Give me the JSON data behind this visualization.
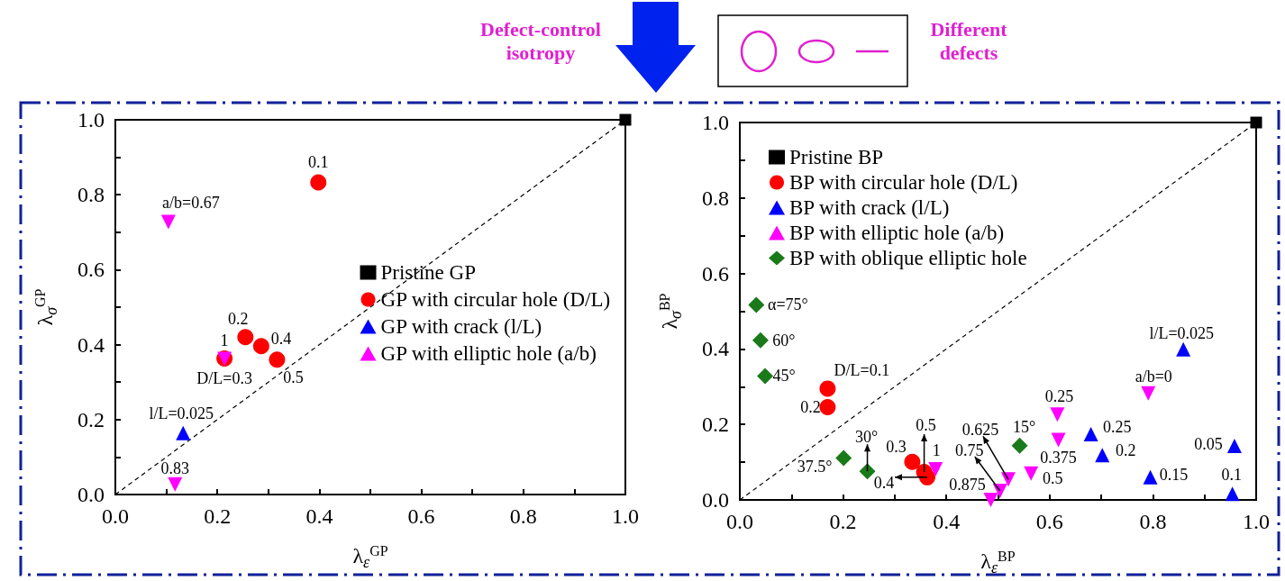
{
  "chart_data": [
    {
      "type": "scatter",
      "xlabel": "λ$_{ε}$$^{GP}$",
      "ylabel": "λ$_{σ}$$^{GP}$",
      "xlim": [
        0,
        1
      ],
      "ylim": [
        0,
        1
      ],
      "xticks": [
        {
          "value": 0,
          "label": "0.0"
        },
        {
          "value": 0.1,
          "label": null
        },
        0.2,
        {
          "value": 0.3,
          "label": null
        },
        0.4,
        {
          "value": 0.5,
          "label": null
        },
        0.6,
        {
          "value": 0.7,
          "label": null
        },
        0.8,
        {
          "value": 0.9,
          "label": null
        },
        {
          "value": 1,
          "label": "1.0"
        }
      ],
      "yticks": [
        {
          "value": 0,
          "label": "0.0"
        },
        {
          "value": 0.1,
          "label": null
        },
        0.2,
        {
          "value": 0.3,
          "label": null
        },
        0.4,
        {
          "value": 0.5,
          "label": null
        },
        0.6,
        {
          "value": 0.7,
          "label": null
        },
        0.8,
        {
          "value": 0.9,
          "label": null
        },
        {
          "value": 1,
          "label": "1.0"
        }
      ],
      "legend": "bottom right",
      "grid": false,
      "series": [
        {
          "type": "line",
          "x": [
            0,
            1
          ],
          "values": [
            0,
            1
          ],
          "color": "#000000",
          "line_style": "dashed",
          "marker": "none"
        },
        {
          "name": "Pristine GP",
          "color": "#000000",
          "marker": "square",
          "x": [
            1
          ],
          "values": [
            1
          ]
        },
        {
          "name": "GP with circular hole (D/L)",
          "color": "#ff0000",
          "marker": "circle",
          "x": [
            0.398,
            0.255,
            0.214,
            0.286,
            0.317
          ],
          "values": [
            0.833,
            0.42,
            0.363,
            0.396,
            0.36
          ]
        },
        {
          "name": "GP with crack (l/L)",
          "color": "#0000ff",
          "marker": "triangle",
          "x": [
            0.133
          ],
          "values": [
            0.164
          ]
        },
        {
          "name": "GP with elliptic hole (a/b)",
          "color": "#ff00ff",
          "marker": "triangle-down",
          "x": [
            0.104,
            0.214,
            0.117
          ],
          "values": [
            0.727,
            0.362,
            0.027
          ]
        }
      ],
      "annotations": [
        "Defect-control isotropy",
        "Different defects",
        {
          "text": "0.1",
          "x": 0.398,
          "y": 0.833
        },
        {
          "text": "0.2",
          "x": 0.255,
          "y": 0.42
        },
        {
          "text": "D/L=0.3",
          "x": 0.214,
          "y": 0.363
        },
        {
          "text": "0.4",
          "x": 0.286,
          "y": 0.396
        },
        {
          "text": "0.5",
          "x": 0.317,
          "y": 0.36
        },
        {
          "text": "l/L=0.025",
          "x": 0.133,
          "y": 0.164
        },
        {
          "text": "a/b=0.67",
          "x": 0.104,
          "y": 0.727
        },
        {
          "text": "1",
          "x": 0.214,
          "y": 0.362
        },
        {
          "text": "0.83",
          "x": 0.117,
          "y": 0.027
        }
      ]
    },
    {
      "type": "scatter",
      "xlabel": "λ$_{ε}$$^{BP}$",
      "ylabel": "λ$_{σ}$$^{BP}$",
      "xlim": [
        0,
        1
      ],
      "ylim": [
        0,
        1
      ],
      "xticks": [
        {
          "value": 0,
          "label": "0.0"
        },
        {
          "value": 0.1,
          "label": null
        },
        0.2,
        {
          "value": 0.3,
          "label": null
        },
        0.4,
        {
          "value": 0.5,
          "label": null
        },
        0.6,
        {
          "value": 0.7,
          "label": null
        },
        0.8,
        {
          "value": 0.9,
          "label": null
        },
        {
          "value": 1,
          "label": "1.0"
        }
      ],
      "yticks": [
        {
          "value": 0,
          "label": "0.0"
        },
        {
          "value": 0.1,
          "label": null
        },
        0.2,
        {
          "value": 0.3,
          "label": null
        },
        0.4,
        {
          "value": 0.5,
          "label": null
        },
        0.6,
        {
          "value": 0.7,
          "label": null
        },
        0.8,
        {
          "value": 0.9,
          "label": null
        },
        {
          "value": 1,
          "label": "1.0"
        }
      ],
      "legend": "top left",
      "grid": false,
      "series": [
        {
          "type": "line",
          "x": [
            0,
            1
          ],
          "values": [
            0,
            1
          ],
          "color": "#000000",
          "line_style": "dashed",
          "marker": "none"
        },
        {
          "name": "Pristine BP",
          "color": "#000000",
          "marker": "square",
          "x": [
            1
          ],
          "values": [
            1
          ]
        },
        {
          "name": "BP with circular hole (D/L)",
          "color": "#ff0000",
          "marker": "circle",
          "x": [
            0.17,
            0.17,
            0.334,
            0.363,
            0.357
          ],
          "values": [
            0.295,
            0.246,
            0.101,
            0.06,
            0.074
          ]
        },
        {
          "name": "BP with crack (l/L)",
          "color": "#0000ff",
          "marker": "triangle",
          "x": [
            0.859,
            0.68,
            0.702,
            0.795,
            0.958,
            0.954
          ],
          "values": [
            0.399,
            0.174,
            0.119,
            0.06,
            0.143,
            0.016
          ]
        },
        {
          "name": "BP with elliptic hole (a/b)",
          "color": "#ff00ff",
          "marker": "triangle-down",
          "x": [
            0.791,
            0.615,
            0.617,
            0.564,
            0.379,
            0.52,
            0.504,
            0.486
          ],
          "values": [
            0.282,
            0.226,
            0.159,
            0.07,
            0.081,
            0.054,
            0.024,
            0.0
          ]
        },
        {
          "name": "BP with oblique elliptic hole",
          "color": "#1a7a1a",
          "marker": "diamond",
          "x": [
            0.032,
            0.04,
            0.049,
            0.201,
            0.247,
            0.542
          ],
          "values": [
            0.517,
            0.423,
            0.328,
            0.111,
            0.076,
            0.144
          ]
        }
      ],
      "annotations": [
        {
          "text": "D/L=0.1",
          "x": 0.17,
          "y": 0.295
        },
        {
          "text": "0.2",
          "x": 0.17,
          "y": 0.246
        },
        {
          "text": "0.3",
          "x": 0.334,
          "y": 0.101
        },
        {
          "text": "0.5",
          "x": 0.357,
          "y": 0.074
        },
        {
          "text": "0.4",
          "x": 0.363,
          "y": 0.06
        },
        {
          "text": "1",
          "x": 0.379,
          "y": 0.081
        },
        {
          "text": "0.625",
          "x": 0.52,
          "y": 0.054
        },
        {
          "text": "0.75",
          "x": 0.504,
          "y": 0.024
        },
        {
          "text": "0.875",
          "x": 0.486,
          "y": 0.0
        },
        {
          "text": "0.5",
          "x": 0.564,
          "y": 0.07
        },
        {
          "text": "0.375",
          "x": 0.617,
          "y": 0.159
        },
        {
          "text": "0.25",
          "x": 0.615,
          "y": 0.226
        },
        {
          "text": "a/b=0",
          "x": 0.791,
          "y": 0.282
        },
        {
          "text": "l/L=0.025",
          "x": 0.859,
          "y": 0.399
        },
        {
          "text": "0.25",
          "x": 0.68,
          "y": 0.174
        },
        {
          "text": "0.2",
          "x": 0.702,
          "y": 0.119
        },
        {
          "text": "0.15",
          "x": 0.795,
          "y": 0.06
        },
        {
          "text": "0.05",
          "x": 0.958,
          "y": 0.143
        },
        {
          "text": "0.1",
          "x": 0.954,
          "y": 0.016
        },
        {
          "text": "α=75°",
          "x": 0.032,
          "y": 0.517
        },
        {
          "text": "60°",
          "x": 0.04,
          "y": 0.423
        },
        {
          "text": "45°",
          "x": 0.049,
          "y": 0.328
        },
        {
          "text": "37.5°",
          "x": 0.201,
          "y": 0.111
        },
        {
          "text": "30°",
          "x": 0.247,
          "y": 0.076
        },
        {
          "text": "15°",
          "x": 0.542,
          "y": 0.144
        }
      ]
    }
  ]
}
